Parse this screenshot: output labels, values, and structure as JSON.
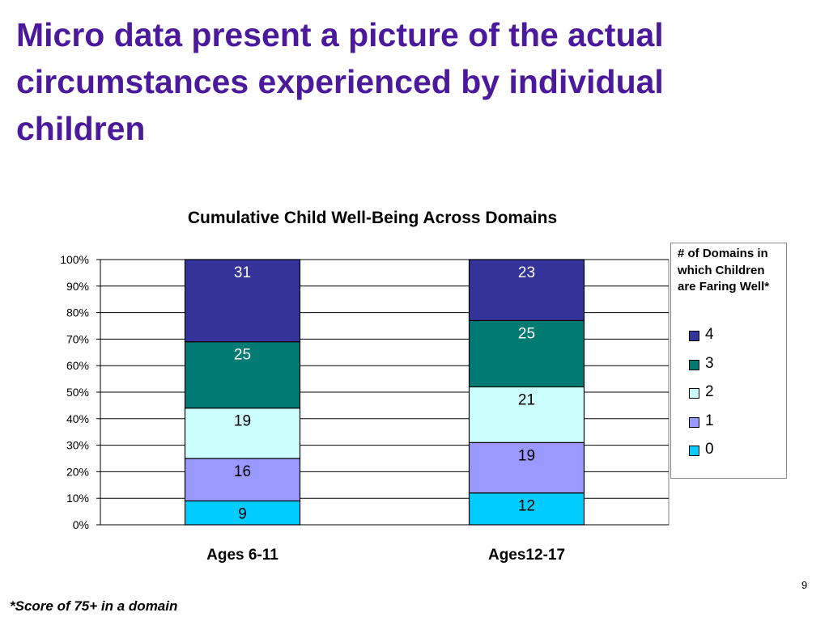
{
  "slide": {
    "title": "Micro data present a picture of the actual circumstances experienced by individual children",
    "footnote": "*Score of 75+ in a domain",
    "page_number": "9"
  },
  "chart_data": {
    "type": "bar",
    "stacked": true,
    "title": "Cumulative Child Well-Being Across Domains",
    "categories": [
      "Ages 6-11",
      "Ages12-17"
    ],
    "series": [
      {
        "name": "0",
        "values": [
          9,
          12
        ],
        "color": "#00ccff"
      },
      {
        "name": "1",
        "values": [
          16,
          19
        ],
        "color": "#9999ff"
      },
      {
        "name": "2",
        "values": [
          19,
          21
        ],
        "color": "#ccffff"
      },
      {
        "name": "3",
        "values": [
          25,
          25
        ],
        "color": "#007a73"
      },
      {
        "name": "4",
        "values": [
          31,
          23
        ],
        "color": "#333399"
      }
    ],
    "ylim": [
      0,
      100
    ],
    "y_ticks": [
      "0%",
      "10%",
      "20%",
      "30%",
      "40%",
      "50%",
      "60%",
      "70%",
      "80%",
      "90%",
      "100%"
    ],
    "grid": true,
    "legend": {
      "title": "# of Domains in which Children are Faring Well*",
      "placement": "right",
      "order": [
        "4",
        "3",
        "2",
        "1",
        "0"
      ]
    }
  }
}
